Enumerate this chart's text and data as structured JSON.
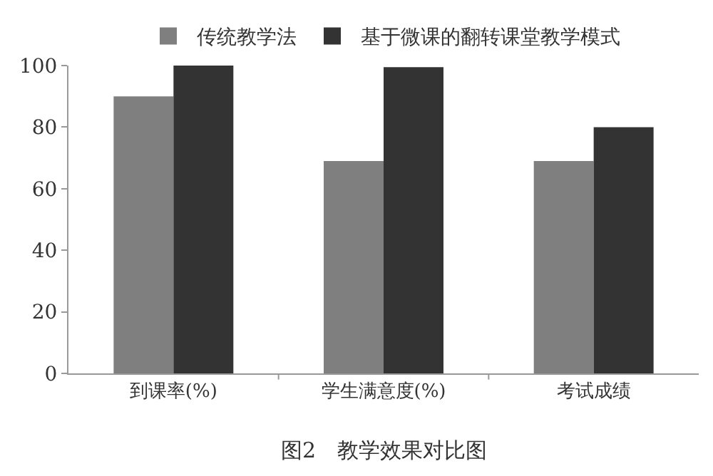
{
  "chart_data": {
    "type": "bar",
    "title": "图2　教学效果对比图",
    "categories": [
      "到课率(%)",
      "学生满意度(%)",
      "考试成绩"
    ],
    "series": [
      {
        "name": "传统教学法",
        "color": "#7f7f7f",
        "values": [
          90,
          69,
          69
        ]
      },
      {
        "name": "基于微课的翻转课堂教学模式",
        "color": "#333333",
        "values": [
          100,
          99.5,
          80
        ]
      }
    ],
    "ylim": [
      0,
      100
    ],
    "yticks": [
      0,
      20,
      40,
      60,
      80,
      100
    ],
    "grid": false,
    "legend": "top"
  }
}
